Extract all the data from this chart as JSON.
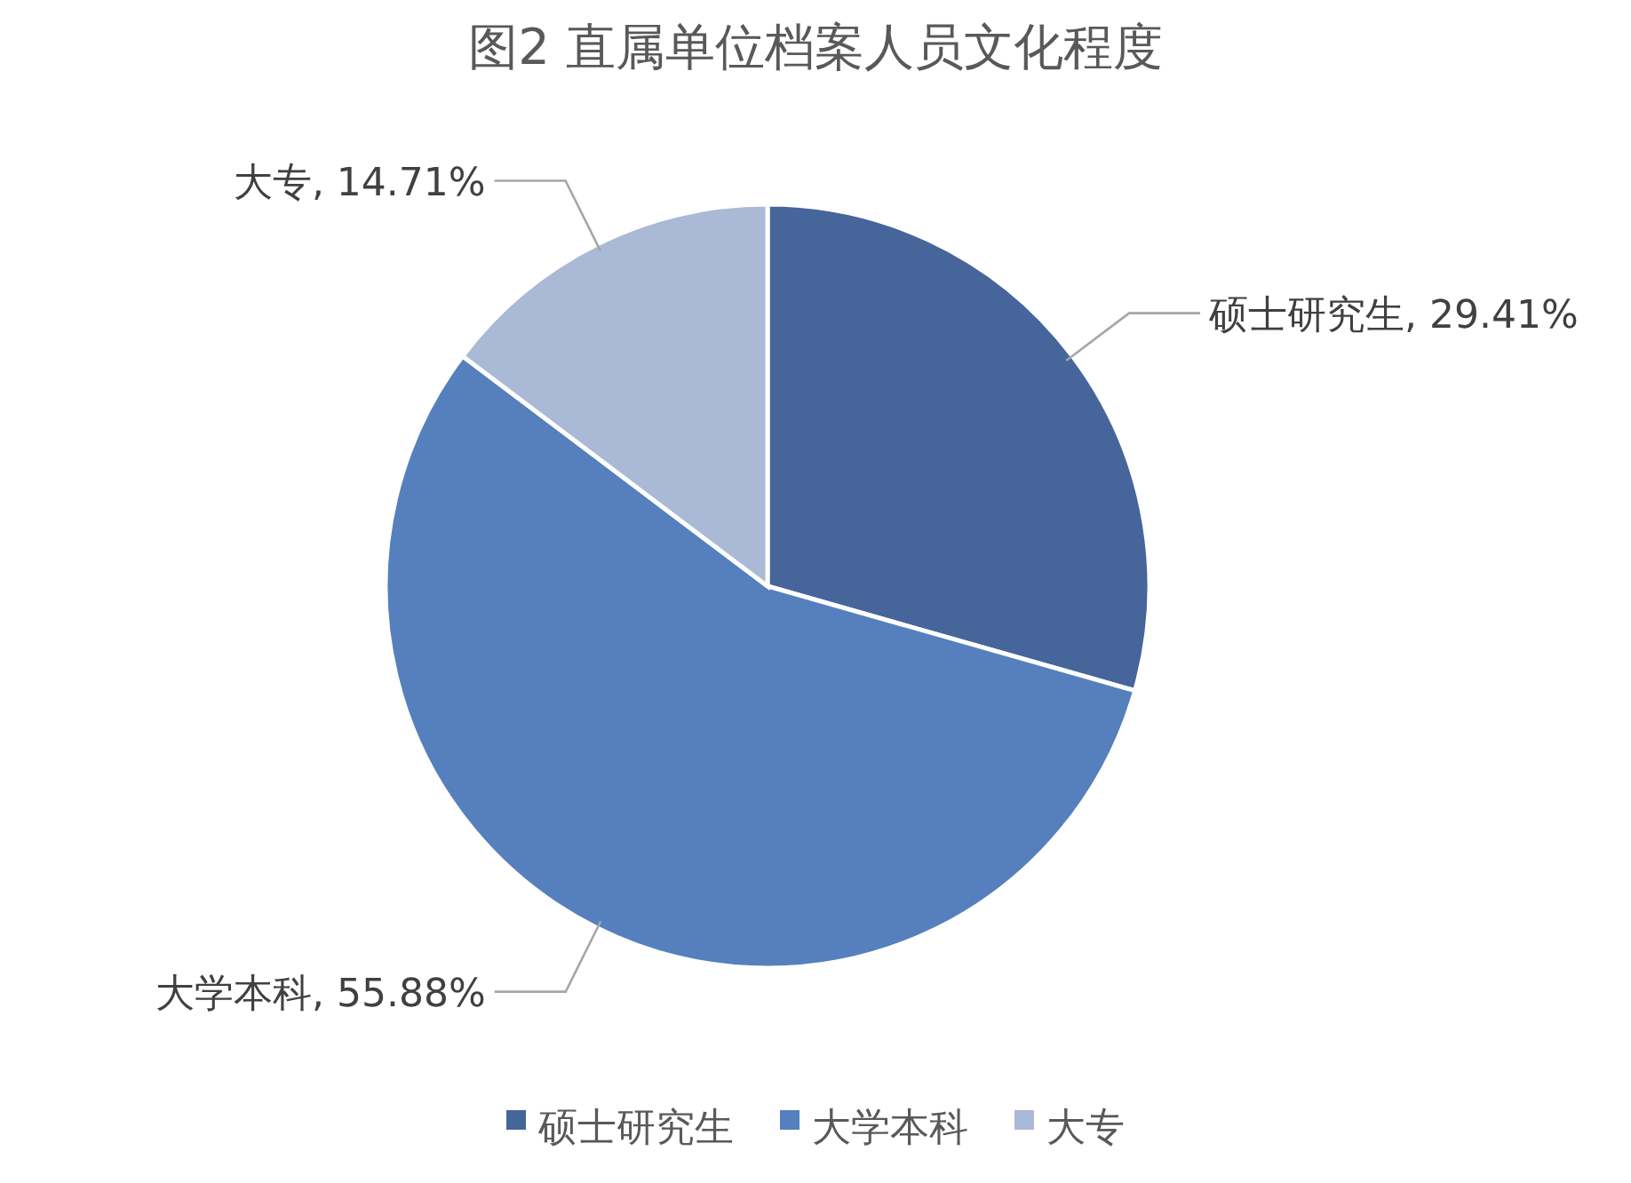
{
  "chart_data": {
    "type": "pie",
    "title": "图2 直属单位档案人员文化程度",
    "categories": [
      "硕士研究生",
      "大学本科",
      "大专"
    ],
    "values": [
      29.41,
      55.88,
      14.71
    ],
    "value_labels": [
      "硕士研究生, 29.41%",
      "大学本科, 55.88%",
      "大专, 14.71%"
    ],
    "colors": [
      "#46659a",
      "#5580bd",
      "#a9b9d6"
    ],
    "legend": "bottom"
  }
}
